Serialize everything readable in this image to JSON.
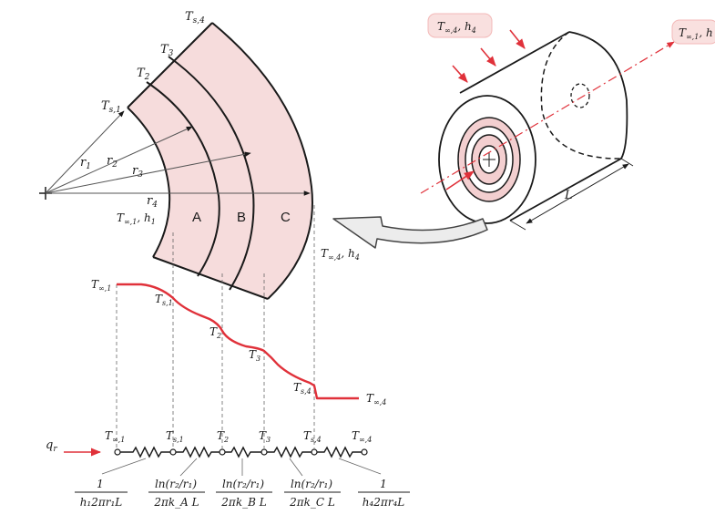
{
  "colors": {
    "shell_fill": "#f6dcdc",
    "red": "#e0313a",
    "ink": "#1a1a1a",
    "badge": "#f9e0df"
  },
  "cross_section": {
    "T_s4": "T",
    "T_s4_sub": "s,4",
    "T3": "T",
    "T3_sub": "3",
    "T2": "T",
    "T2_sub": "2",
    "T_s1": "T",
    "T_s1_sub": "s,1",
    "r1": "r",
    "r1_sub": "1",
    "r2": "r",
    "r2_sub": "2",
    "r3": "r",
    "r3_sub": "3",
    "r4": "r",
    "r4_sub": "4",
    "inner_fluid": "T",
    "inner_fluid_sub": "∞,1",
    "inner_h": "h",
    "inner_h_sub": "1",
    "zone_a": "A",
    "zone_b": "B",
    "zone_c": "C",
    "outer_fluid": "T",
    "outer_fluid_sub": "∞,4",
    "outer_h": "h",
    "outer_h_sub": "4"
  },
  "cylinder": {
    "badge_outer_T": "T",
    "badge_outer_T_sub": "∞,4",
    "badge_outer_h": "h",
    "badge_outer_h_sub": "4",
    "badge_inner_T": "T",
    "badge_inner_T_sub": "∞,1",
    "badge_inner_h": "h",
    "length_label": "L"
  },
  "profile": {
    "T_inf1": "T",
    "T_inf1_sub": "∞,1",
    "T_s1": "T",
    "T_s1_sub": "s,1",
    "T2": "T",
    "T2_sub": "2",
    "T3": "T",
    "T3_sub": "3",
    "T_s4": "T",
    "T_s4_sub": "s,4",
    "T_inf4": "T",
    "T_inf4_sub": "∞,4"
  },
  "circuit": {
    "q": "q",
    "q_sub": "r",
    "nodes": [
      {
        "t": "T",
        "sub": "∞,1"
      },
      {
        "t": "T",
        "sub": "s,1"
      },
      {
        "t": "T",
        "sub": "2"
      },
      {
        "t": "T",
        "sub": "3"
      },
      {
        "t": "T",
        "sub": "s,4"
      },
      {
        "t": "T",
        "sub": "∞,4"
      }
    ],
    "resistances": [
      {
        "num": "1",
        "den": "h₁2πr₁L"
      },
      {
        "num": "ln(r₂/r₁)",
        "den": "2πk_A L"
      },
      {
        "num": "ln(r₂/r₁)",
        "den": "2πk_B L"
      },
      {
        "num": "ln(r₂/r₁)",
        "den": "2πk_C L"
      },
      {
        "num": "1",
        "den": "h₄2πr₄L"
      }
    ]
  }
}
